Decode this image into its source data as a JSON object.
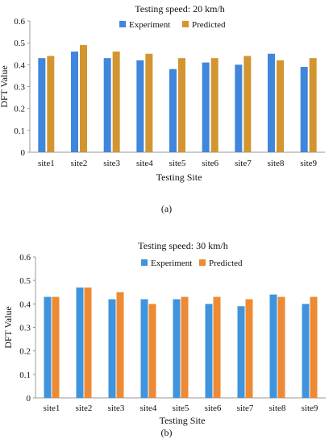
{
  "chart_data": [
    {
      "type": "bar",
      "title": "Testing speed: 20 km/h",
      "xlabel": "Testing Site",
      "ylabel": "DFT Value",
      "ylim": [
        0,
        0.6
      ],
      "yticks": [
        "0",
        "0.1",
        "0.2",
        "0.3",
        "0.4",
        "0.5",
        "0.6"
      ],
      "grid": false,
      "legend_position": "top-right",
      "categories": [
        "site1",
        "site2",
        "site3",
        "site4",
        "site5",
        "site6",
        "site7",
        "site8",
        "site9"
      ],
      "series": [
        {
          "name": "Experiment",
          "color": "#3f86dd",
          "values": [
            0.43,
            0.46,
            0.43,
            0.42,
            0.38,
            0.41,
            0.4,
            0.45,
            0.39
          ]
        },
        {
          "name": "Predicted",
          "color": "#d29530",
          "values": [
            0.44,
            0.49,
            0.46,
            0.45,
            0.43,
            0.43,
            0.44,
            0.42,
            0.43
          ]
        }
      ],
      "caption": "(a)"
    },
    {
      "type": "bar",
      "title": "Testing speed: 30 km/h",
      "xlabel": "Testing Site",
      "ylabel": "DFT Value",
      "ylim": [
        0,
        0.6
      ],
      "yticks": [
        "0",
        "0.1",
        "0.2",
        "0.3",
        "0.4",
        "0.5",
        "0.6"
      ],
      "grid": false,
      "legend_position": "top-right",
      "categories": [
        "site1",
        "site2",
        "site3",
        "site4",
        "site5",
        "site6",
        "site7",
        "site8",
        "site9"
      ],
      "series": [
        {
          "name": "Experiment",
          "color": "#3f94dd",
          "values": [
            0.43,
            0.47,
            0.42,
            0.42,
            0.42,
            0.4,
            0.39,
            0.44,
            0.4
          ]
        },
        {
          "name": "Predicted",
          "color": "#ee8a33",
          "values": [
            0.43,
            0.47,
            0.45,
            0.4,
            0.43,
            0.43,
            0.42,
            0.43,
            0.43
          ]
        }
      ],
      "caption": "(b)"
    }
  ]
}
